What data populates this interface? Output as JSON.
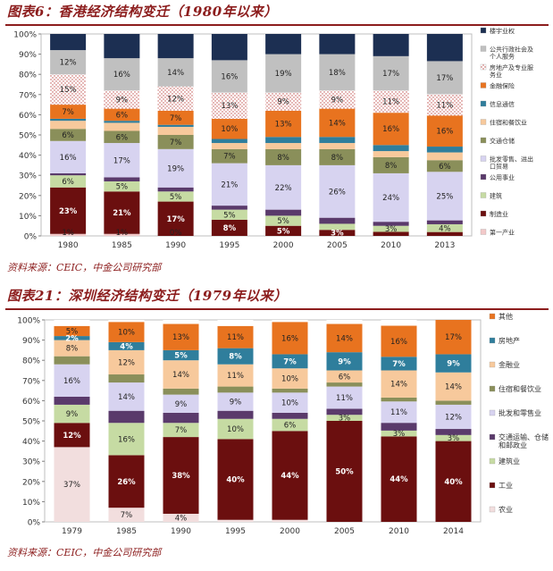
{
  "charts": {
    "hk": {
      "fig_title": "图表6：香港经济结构变迁（1980年以来）",
      "source": "资料来源：CEIC，中金公司研究部"
    },
    "sz": {
      "fig_title": "图表21：深圳经济结构变迁（1979年以来）",
      "source": "资料来源：CEIC，中金公司研究部"
    }
  },
  "chart_data": [
    {
      "type": "bar",
      "stacked": true,
      "percent": true,
      "title": "图表6：香港经济结构变迁（1980年以来）",
      "categories": [
        "1980",
        "1985",
        "1990",
        "1995",
        "2000",
        "2005",
        "2010",
        "2013"
      ],
      "ylim": [
        0,
        100
      ],
      "yticks": [
        "0%",
        "10%",
        "20%",
        "30%",
        "40%",
        "50%",
        "60%",
        "70%",
        "80%",
        "90%",
        "100%"
      ],
      "legend_position": "right",
      "series": [
        {
          "name": "第一产业",
          "color": "#f2c9c9",
          "values": [
            1,
            1,
            0,
            0,
            0,
            0,
            0,
            0
          ],
          "labels": [
            "1%",
            "1%",
            "0%",
            "",
            "",
            "",
            "",
            ""
          ]
        },
        {
          "name": "制造业",
          "color": "#6b0f0f",
          "values": [
            23,
            21,
            17,
            8,
            5,
            3,
            2,
            2
          ],
          "labels": [
            "23%",
            "21%",
            "17%",
            "8%",
            "5%",
            "3%",
            "",
            ""
          ]
        },
        {
          "name": "建筑",
          "color": "#c6dba3",
          "values": [
            6,
            5,
            5,
            5,
            5,
            3,
            3,
            4
          ],
          "labels": [
            "6%",
            "5%",
            "5%",
            "5%",
            "5%",
            "",
            "3%",
            "4%"
          ]
        },
        {
          "name": "公用事业",
          "color": "#5a3a6b",
          "values": [
            1,
            2,
            2,
            2,
            3,
            3,
            2,
            2
          ],
          "labels": [
            "",
            "",
            "",
            "",
            "",
            "",
            "",
            ""
          ]
        },
        {
          "name": "批发零售、进出口贸易",
          "color": "#d7d3f0",
          "values": [
            16,
            17,
            19,
            21,
            22,
            26,
            24,
            25
          ],
          "labels": [
            "16%",
            "17%",
            "19%",
            "21%",
            "22%",
            "26%",
            "24%",
            "25%"
          ]
        },
        {
          "name": "交通仓储",
          "color": "#8a8f5a",
          "values": [
            6,
            6,
            7,
            7,
            8,
            8,
            8,
            6
          ],
          "labels": [
            "6%",
            "6%",
            "7%",
            "7%",
            "8%",
            "8%",
            "8%",
            "6%"
          ]
        },
        {
          "name": "住宿和餐饮业",
          "color": "#f7c99c",
          "values": [
            4,
            4,
            4,
            3,
            3,
            3,
            3,
            4
          ],
          "labels": [
            "",
            "",
            "",
            "",
            "",
            "",
            "",
            ""
          ]
        },
        {
          "name": "信息通信",
          "color": "#2f7e9c",
          "values": [
            1,
            1,
            1,
            2,
            3,
            3,
            3,
            3
          ],
          "labels": [
            "",
            "",
            "",
            "",
            "",
            "",
            "",
            ""
          ]
        },
        {
          "name": "金融保险",
          "color": "#e8731f",
          "values": [
            7,
            6,
            7,
            10,
            13,
            14,
            16,
            16
          ],
          "labels": [
            "7%",
            "6%",
            "7%",
            "10%",
            "13%",
            "14%",
            "16%",
            "16%"
          ]
        },
        {
          "name": "房地产及专业服务业",
          "color": "#ffffff",
          "pattern": "dots",
          "values": [
            15,
            9,
            12,
            13,
            9,
            9,
            11,
            11
          ],
          "labels": [
            "15%",
            "9%",
            "12%",
            "13%",
            "9%",
            "9%",
            "11%",
            "11%"
          ]
        },
        {
          "name": "公共行政社会及个人服务",
          "color": "#c0c0c0",
          "values": [
            12,
            16,
            14,
            16,
            19,
            18,
            17,
            17
          ],
          "labels": [
            "12%",
            "16%",
            "14%",
            "16%",
            "19%",
            "18%",
            "17%",
            "17%"
          ]
        },
        {
          "name": "楼宇业权",
          "color": "#1c2f52",
          "values": [
            8,
            12,
            12,
            13,
            10,
            10,
            11,
            14
          ],
          "labels": [
            "",
            "",
            "",
            "",
            "",
            "",
            "",
            ""
          ]
        }
      ]
    },
    {
      "type": "bar",
      "stacked": true,
      "percent": true,
      "title": "图表21：深圳经济结构变迁（1979年以来）",
      "categories": [
        "1979",
        "1985",
        "1990",
        "1995",
        "2000",
        "2005",
        "2010",
        "2014"
      ],
      "ylim": [
        0,
        100
      ],
      "yticks": [
        "0%",
        "10%",
        "20%",
        "30%",
        "40%",
        "50%",
        "60%",
        "70%",
        "80%",
        "90%",
        "100%"
      ],
      "legend_position": "right",
      "series": [
        {
          "name": "农业",
          "color": "#f2dede",
          "values": [
            37,
            7,
            4,
            1,
            1,
            0,
            0,
            0
          ],
          "labels": [
            "37%",
            "7%",
            "4%",
            "",
            "",
            "",
            "",
            ""
          ]
        },
        {
          "name": "工业",
          "color": "#6b0f0f",
          "values": [
            12,
            26,
            38,
            40,
            44,
            50,
            44,
            40
          ],
          "labels": [
            "12%",
            "26%",
            "38%",
            "40%",
            "44%",
            "50%",
            "44%",
            "40%"
          ]
        },
        {
          "name": "建筑业",
          "color": "#c6dba3",
          "values": [
            9,
            16,
            7,
            10,
            6,
            3,
            3,
            3
          ],
          "labels": [
            "9%",
            "16%",
            "7%",
            "10%",
            "6%",
            "3%",
            "3%",
            "3%"
          ]
        },
        {
          "name": "交通运输、仓储和邮政业",
          "color": "#5a3a6b",
          "values": [
            4,
            6,
            5,
            4,
            3,
            3,
            4,
            3
          ],
          "labels": [
            "",
            "",
            "",
            "",
            "",
            "",
            "",
            ""
          ]
        },
        {
          "name": "批发和零售业",
          "color": "#d7d3f0",
          "values": [
            16,
            14,
            9,
            9,
            10,
            11,
            11,
            12
          ],
          "labels": [
            "16%",
            "14%",
            "9%",
            "9%",
            "10%",
            "11%",
            "11%",
            "12%"
          ]
        },
        {
          "name": "住宿和餐饮业",
          "color": "#8a8f5a",
          "values": [
            4,
            4,
            3,
            3,
            2,
            2,
            2,
            2
          ],
          "labels": [
            "",
            "",
            "",
            "",
            "",
            "",
            "",
            ""
          ]
        },
        {
          "name": "金融业",
          "color": "#f7c99c",
          "values": [
            8,
            12,
            14,
            11,
            10,
            6,
            14,
            14
          ],
          "labels": [
            "8%",
            "12%",
            "14%",
            "11%",
            "10%",
            "6%",
            "14%",
            "14%"
          ]
        },
        {
          "name": "房地产",
          "color": "#2f7e9c",
          "values": [
            2,
            4,
            5,
            8,
            7,
            9,
            7,
            9
          ],
          "labels": [
            "2%",
            "4%",
            "5%",
            "8%",
            "7%",
            "9%",
            "7%",
            "9%"
          ]
        },
        {
          "name": "其他",
          "color": "#e8731f",
          "values": [
            5,
            10,
            13,
            11,
            16,
            14,
            16,
            17
          ],
          "labels": [
            "5%",
            "10%",
            "13%",
            "11%",
            "16%",
            "14%",
            "16%",
            "17%"
          ]
        },
        {
          "name": "",
          "color": "#ffffff",
          "values": [
            3,
            1,
            2,
            3,
            1,
            2,
            3,
            0
          ],
          "labels": [
            "",
            "",
            "",
            "",
            "",
            "",
            "",
            ""
          ]
        }
      ]
    }
  ]
}
